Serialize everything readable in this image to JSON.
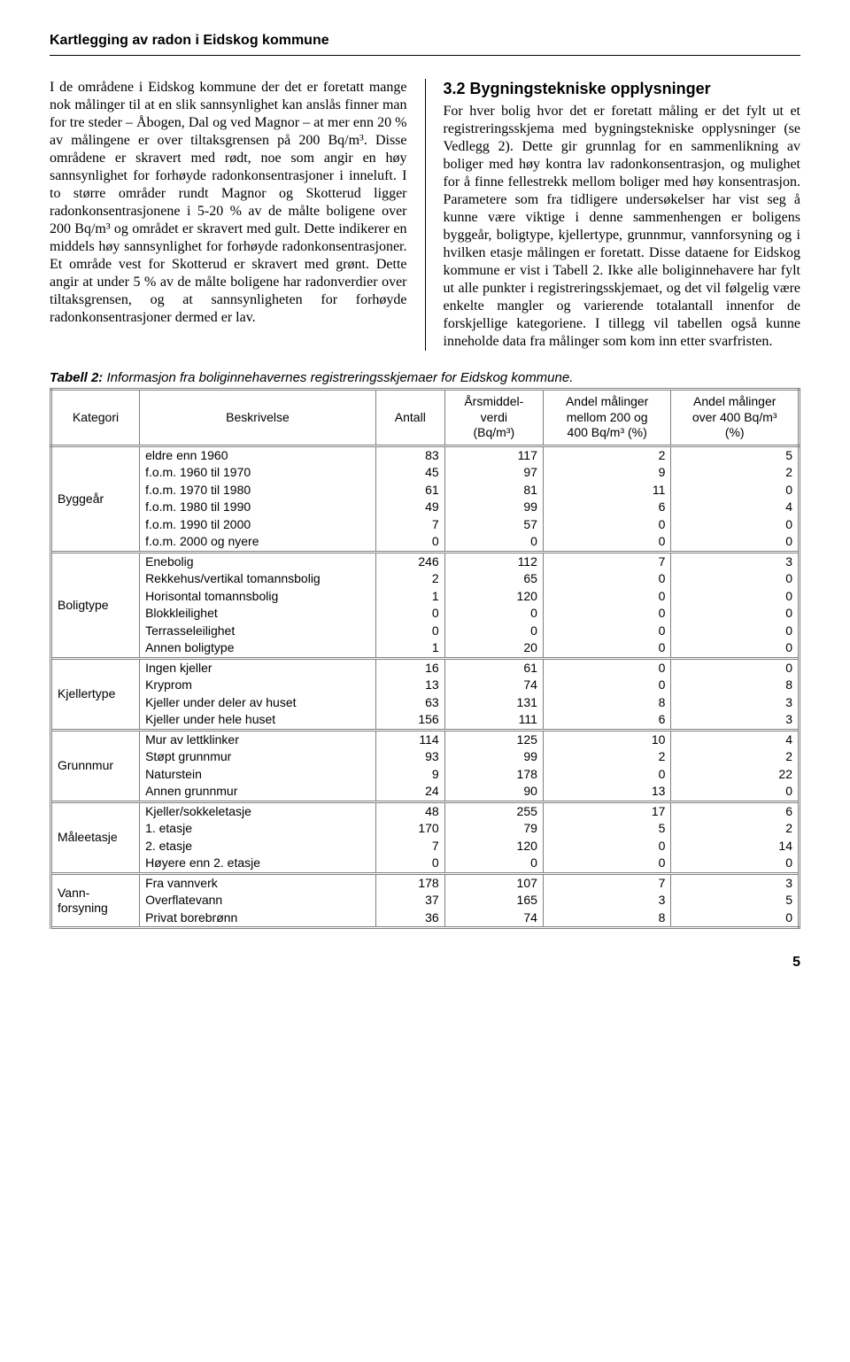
{
  "header": "Kartlegging av radon i Eidskog kommune",
  "left_paragraph": "I de områdene i Eidskog kommune der det er foretatt mange nok målinger til at en slik sannsynlighet kan anslås finner man for tre steder – Åbogen, Dal og ved Magnor – at mer enn 20 % av målingene er over tiltaksgrensen på 200 Bq/m³. Disse områdene er skravert med rødt, noe som angir en høy sannsynlighet for forhøyde radonkonsentrasjoner i inneluft. I to større områder rundt Magnor og Skotterud ligger radonkonsentrasjonene i 5-20 % av de målte boligene over 200 Bq/m³ og området er skravert med gult. Dette indikerer en middels høy sannsynlighet for forhøyde radonkonsentrasjoner. Et område vest for Skotterud er skravert med grønt. Dette angir at under 5 % av de målte boligene har radonverdier over tiltaksgrensen, og at sannsynligheten for forhøyde radonkonsentrasjoner dermed er lav.",
  "right_title": "3.2 Bygningstekniske opplysninger",
  "right_paragraph": "For hver bolig hvor det er foretatt måling er det fylt ut et registreringsskjema med bygningstekniske opplysninger (se Vedlegg 2). Dette gir grunnlag for en sammenlikning av boliger med høy kontra lav radonkonsentrasjon, og mulighet for å finne fellestrekk mellom boliger med høy konsentrasjon. Parametere som fra tidligere undersøkelser har vist seg å kunne være viktige i denne sammenhengen er boligens byggeår, boligtype, kjellertype, grunnmur, vannforsyning og i hvilken etasje målingen er foretatt. Disse dataene for Eidskog kommune er vist i Tabell 2. Ikke alle boliginnehavere har fylt ut alle punkter i registreringsskjemaet, og det vil følgelig være enkelte mangler og varierende totalantall innenfor de forskjellige kategoriene. I tillegg vil tabellen også kunne inneholde data fra målinger som kom inn etter svarfristen.",
  "table_caption_bold": "Tabell 2:",
  "table_caption_rest": " Informasjon fra boliginnehavernes registreringsskjemaer for Eidskog kommune.",
  "columns": {
    "c1": "Kategori",
    "c2": "Beskrivelse",
    "c3": "Antall",
    "c4_l1": "Årsmiddel-",
    "c4_l2": "verdi",
    "c4_l3": "(Bq/m³)",
    "c5_l1": "Andel målinger",
    "c5_l2": "mellom 200 og",
    "c5_l3": "400 Bq/m³ (%)",
    "c6_l1": "Andel målinger",
    "c6_l2": "over 400 Bq/m³",
    "c6_l3": "(%)"
  },
  "groups": [
    {
      "category": "Byggeår",
      "rows": [
        [
          "eldre enn 1960",
          "83",
          "117",
          "2",
          "5"
        ],
        [
          "f.o.m. 1960 til 1970",
          "45",
          "97",
          "9",
          "2"
        ],
        [
          "f.o.m. 1970 til 1980",
          "61",
          "81",
          "11",
          "0"
        ],
        [
          "f.o.m. 1980 til 1990",
          "49",
          "99",
          "6",
          "4"
        ],
        [
          "f.o.m. 1990 til 2000",
          "7",
          "57",
          "0",
          "0"
        ],
        [
          "f.o.m. 2000 og nyere",
          "0",
          "0",
          "0",
          "0"
        ]
      ]
    },
    {
      "category": "Boligtype",
      "rows": [
        [
          "Enebolig",
          "246",
          "112",
          "7",
          "3"
        ],
        [
          "Rekkehus/vertikal tomannsbolig",
          "2",
          "65",
          "0",
          "0"
        ],
        [
          "Horisontal tomannsbolig",
          "1",
          "120",
          "0",
          "0"
        ],
        [
          "Blokkleilighet",
          "0",
          "0",
          "0",
          "0"
        ],
        [
          "Terrasseleilighet",
          "0",
          "0",
          "0",
          "0"
        ],
        [
          "Annen boligtype",
          "1",
          "20",
          "0",
          "0"
        ]
      ]
    },
    {
      "category": "Kjellertype",
      "rows": [
        [
          "Ingen kjeller",
          "16",
          "61",
          "0",
          "0"
        ],
        [
          "Kryprom",
          "13",
          "74",
          "0",
          "8"
        ],
        [
          "Kjeller under deler av huset",
          "63",
          "131",
          "8",
          "3"
        ],
        [
          "Kjeller under hele huset",
          "156",
          "111",
          "6",
          "3"
        ]
      ]
    },
    {
      "category": "Grunnmur",
      "rows": [
        [
          "Mur av lettklinker",
          "114",
          "125",
          "10",
          "4"
        ],
        [
          "Støpt grunnmur",
          "93",
          "99",
          "2",
          "2"
        ],
        [
          "Naturstein",
          "9",
          "178",
          "0",
          "22"
        ],
        [
          "Annen grunnmur",
          "24",
          "90",
          "13",
          "0"
        ]
      ]
    },
    {
      "category": "Måleetasje",
      "rows": [
        [
          "Kjeller/sokkeletasje",
          "48",
          "255",
          "17",
          "6"
        ],
        [
          "1. etasje",
          "170",
          "79",
          "5",
          "2"
        ],
        [
          "2. etasje",
          "7",
          "120",
          "0",
          "14"
        ],
        [
          "Høyere enn 2. etasje",
          "0",
          "0",
          "0",
          "0"
        ]
      ]
    },
    {
      "category": "Vann-\nforsyning",
      "rows": [
        [
          "Fra vannverk",
          "178",
          "107",
          "7",
          "3"
        ],
        [
          "Overflatevann",
          "37",
          "165",
          "3",
          "5"
        ],
        [
          "Privat borebrønn",
          "36",
          "74",
          "8",
          "0"
        ]
      ]
    }
  ],
  "page_number": "5"
}
